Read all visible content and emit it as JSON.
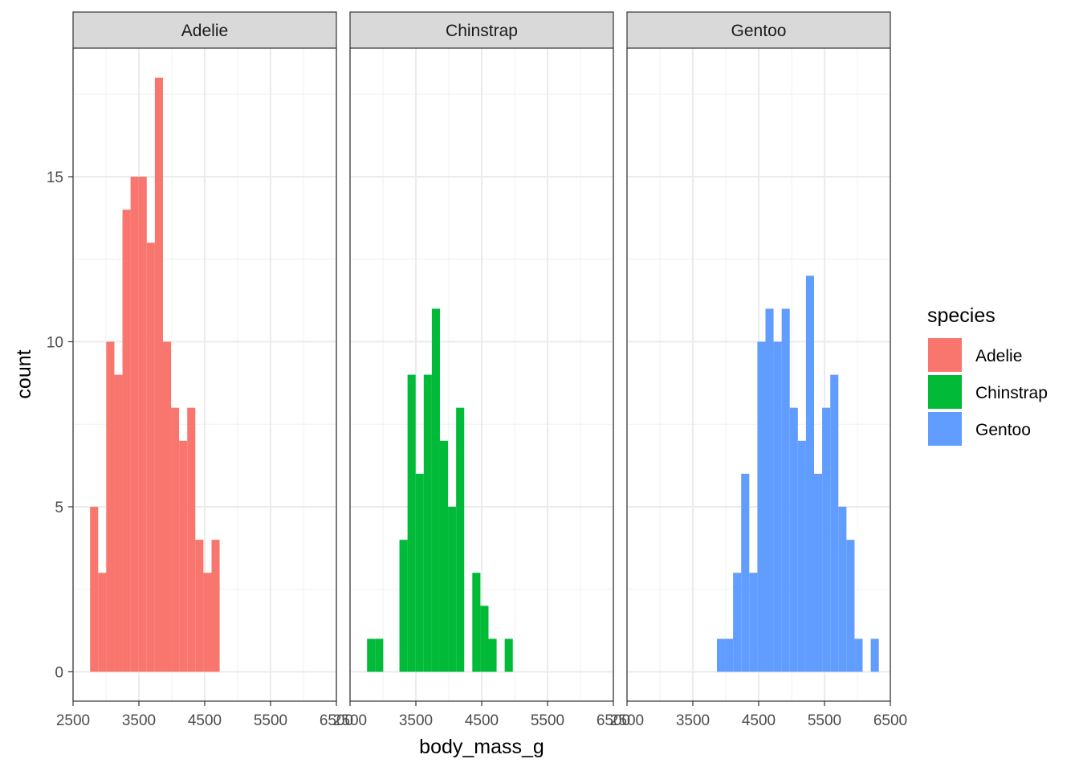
{
  "chart_data": {
    "type": "bar",
    "subtype": "faceted-histogram",
    "xlabel": "body_mass_g",
    "ylabel": "count",
    "xlim": [
      2500,
      6500
    ],
    "ylim": [
      0,
      18
    ],
    "x_ticks": [
      2500,
      3500,
      4500,
      5500,
      6500
    ],
    "x_tick_labels": [
      "2500",
      "3500",
      "4500",
      "5500",
      "6500"
    ],
    "y_ticks": [
      0,
      5,
      10,
      15
    ],
    "y_tick_labels": [
      "0",
      "5",
      "10",
      "15"
    ],
    "grid": true,
    "bin_width": 123,
    "legend": {
      "title": "species",
      "position": "right",
      "entries": [
        {
          "label": "Adelie",
          "color": "#F8766D"
        },
        {
          "label": "Chinstrap",
          "color": "#00BA38"
        },
        {
          "label": "Gentoo",
          "color": "#619CFF"
        }
      ]
    },
    "facets": [
      {
        "name": "Adelie",
        "color": "#F8766D",
        "bins": [
          {
            "x": 2820,
            "count": 5
          },
          {
            "x": 2943,
            "count": 3
          },
          {
            "x": 3066,
            "count": 10
          },
          {
            "x": 3189,
            "count": 9
          },
          {
            "x": 3312,
            "count": 14
          },
          {
            "x": 3435,
            "count": 15
          },
          {
            "x": 3558,
            "count": 15
          },
          {
            "x": 3681,
            "count": 13
          },
          {
            "x": 3804,
            "count": 18
          },
          {
            "x": 3927,
            "count": 10
          },
          {
            "x": 4050,
            "count": 8
          },
          {
            "x": 4173,
            "count": 7
          },
          {
            "x": 4296,
            "count": 8
          },
          {
            "x": 4419,
            "count": 4
          },
          {
            "x": 4542,
            "count": 3
          },
          {
            "x": 4665,
            "count": 4
          }
        ]
      },
      {
        "name": "Chinstrap",
        "color": "#00BA38",
        "bins": [
          {
            "x": 2820,
            "count": 1
          },
          {
            "x": 2943,
            "count": 1
          },
          {
            "x": 3066,
            "count": 0
          },
          {
            "x": 3189,
            "count": 0
          },
          {
            "x": 3312,
            "count": 4
          },
          {
            "x": 3435,
            "count": 9
          },
          {
            "x": 3558,
            "count": 6
          },
          {
            "x": 3681,
            "count": 9
          },
          {
            "x": 3804,
            "count": 11
          },
          {
            "x": 3927,
            "count": 7
          },
          {
            "x": 4050,
            "count": 5
          },
          {
            "x": 4173,
            "count": 8
          },
          {
            "x": 4296,
            "count": 0
          },
          {
            "x": 4419,
            "count": 3
          },
          {
            "x": 4542,
            "count": 2
          },
          {
            "x": 4665,
            "count": 1
          },
          {
            "x": 4788,
            "count": 0
          },
          {
            "x": 4911,
            "count": 1
          }
        ]
      },
      {
        "name": "Gentoo",
        "color": "#619CFF",
        "bins": [
          {
            "x": 3927,
            "count": 1
          },
          {
            "x": 4050,
            "count": 1
          },
          {
            "x": 4173,
            "count": 3
          },
          {
            "x": 4296,
            "count": 6
          },
          {
            "x": 4419,
            "count": 3
          },
          {
            "x": 4542,
            "count": 10
          },
          {
            "x": 4665,
            "count": 11
          },
          {
            "x": 4788,
            "count": 10
          },
          {
            "x": 4911,
            "count": 11
          },
          {
            "x": 5034,
            "count": 8
          },
          {
            "x": 5157,
            "count": 7
          },
          {
            "x": 5280,
            "count": 12
          },
          {
            "x": 5403,
            "count": 6
          },
          {
            "x": 5526,
            "count": 8
          },
          {
            "x": 5649,
            "count": 9
          },
          {
            "x": 5772,
            "count": 5
          },
          {
            "x": 5895,
            "count": 4
          },
          {
            "x": 6018,
            "count": 1
          },
          {
            "x": 6141,
            "count": 0
          },
          {
            "x": 6264,
            "count": 1
          }
        ]
      }
    ]
  }
}
